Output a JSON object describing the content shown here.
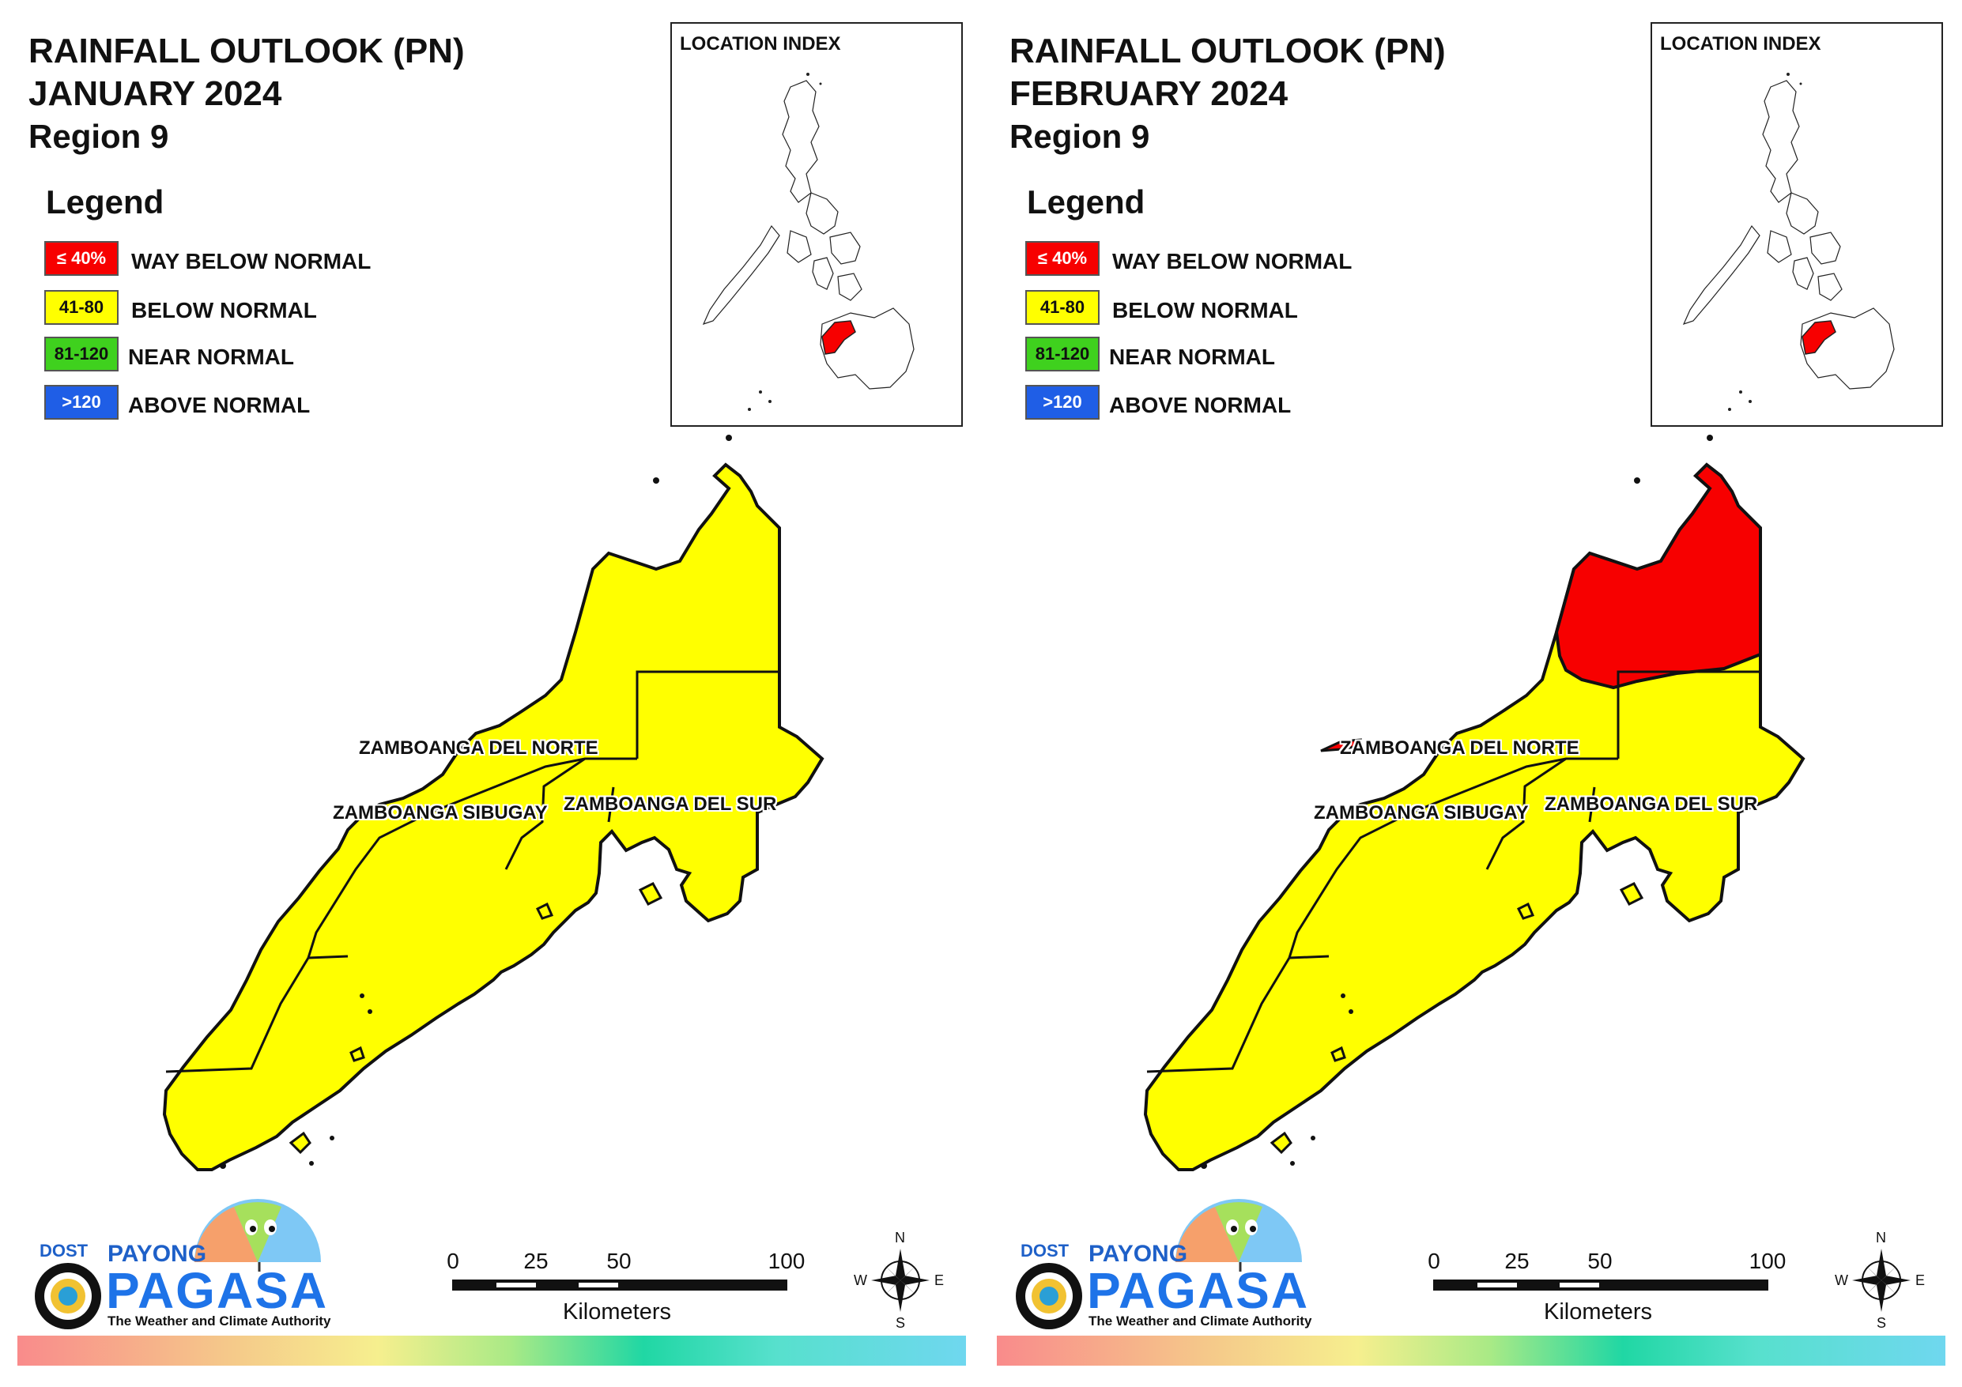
{
  "colors": {
    "way_below": "#f70000",
    "below": "#ffff00",
    "near": "#3fd11e",
    "above": "#1f5ee6",
    "outline": "#111111"
  },
  "panels": [
    {
      "title_line1": "RAINFALL OUTLOOK (PN)",
      "title_line2": "JANUARY 2024",
      "region": "Region 9",
      "legend_heading": "Legend",
      "legend": [
        {
          "range": "≤ 40%",
          "label": "WAY BELOW NORMAL",
          "category": "way_below"
        },
        {
          "range": "41-80",
          "label": "BELOW NORMAL",
          "category": "below"
        },
        {
          "range": "81-120",
          "label": "NEAR NORMAL",
          "category": "near"
        },
        {
          "range": ">120",
          "label": "ABOVE NORMAL",
          "category": "above"
        }
      ],
      "inset_title": "LOCATION INDEX",
      "provinces": [
        {
          "name": "ZAMBOANGA DEL NORTE",
          "category": "below"
        },
        {
          "name": "ZAMBOANGA SIBUGAY",
          "category": "below"
        },
        {
          "name": "ZAMBOANGA DEL SUR",
          "category": "below"
        }
      ],
      "way_below_area": false,
      "logo": {
        "dost": "DOST",
        "payong": "PAYONG",
        "pagasa": "PAGASA",
        "tagline": "The Weather and Climate Authority"
      },
      "scale": {
        "ticks": [
          "0",
          "25",
          "50",
          "100"
        ],
        "unit": "Kilometers"
      },
      "compass": {
        "n": "N",
        "e": "E",
        "s": "S",
        "w": "W"
      }
    },
    {
      "title_line1": "RAINFALL OUTLOOK (PN)",
      "title_line2": "FEBRUARY 2024",
      "region": "Region 9",
      "legend_heading": "Legend",
      "legend": [
        {
          "range": "≤ 40%",
          "label": "WAY BELOW NORMAL",
          "category": "way_below"
        },
        {
          "range": "41-80",
          "label": "BELOW NORMAL",
          "category": "below"
        },
        {
          "range": "81-120",
          "label": "NEAR NORMAL",
          "category": "near"
        },
        {
          "range": ">120",
          "label": "ABOVE NORMAL",
          "category": "above"
        }
      ],
      "inset_title": "LOCATION INDEX",
      "provinces": [
        {
          "name": "ZAMBOANGA DEL NORTE",
          "category": "below"
        },
        {
          "name": "ZAMBOANGA SIBUGAY",
          "category": "below"
        },
        {
          "name": "ZAMBOANGA DEL SUR",
          "category": "below"
        }
      ],
      "way_below_area": true,
      "logo": {
        "dost": "DOST",
        "payong": "PAYONG",
        "pagasa": "PAGASA",
        "tagline": "The Weather and Climate Authority"
      },
      "scale": {
        "ticks": [
          "0",
          "25",
          "50",
          "100"
        ],
        "unit": "Kilometers"
      },
      "compass": {
        "n": "N",
        "e": "E",
        "s": "S",
        "w": "W"
      }
    }
  ]
}
